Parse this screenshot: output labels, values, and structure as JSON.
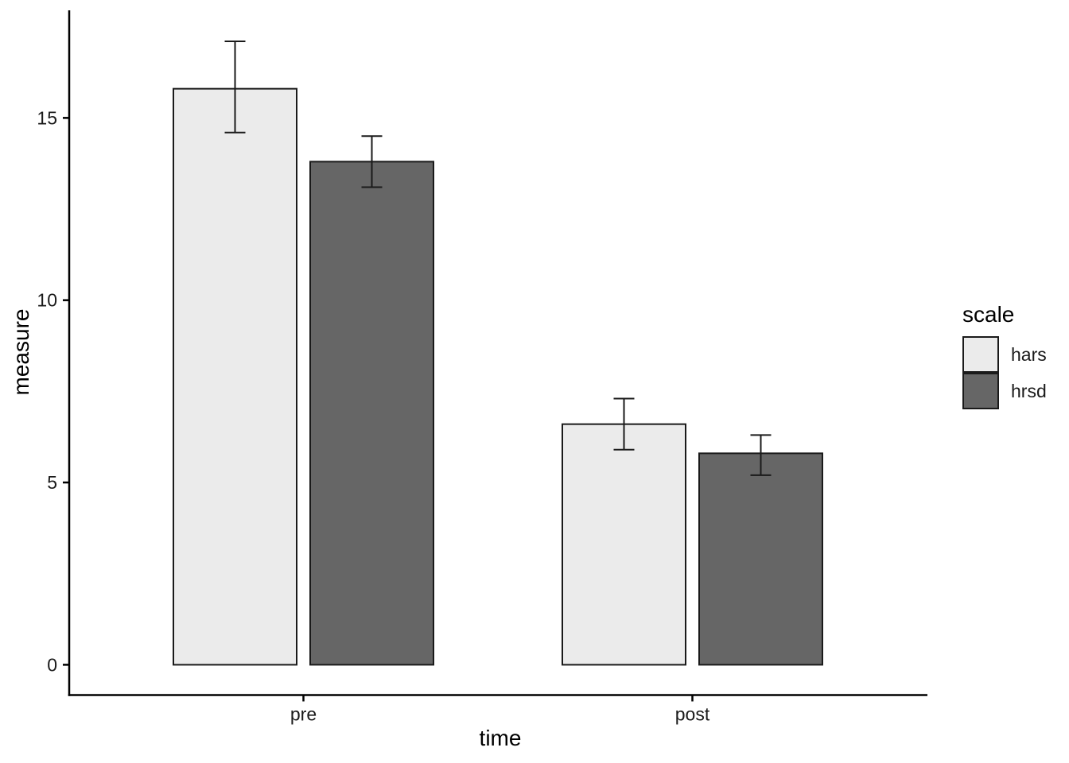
{
  "chart_data": {
    "type": "bar",
    "title": "",
    "xlabel": "time",
    "ylabel": "measure",
    "categories": [
      "pre",
      "post"
    ],
    "series": [
      {
        "name": "hars",
        "fill": "#ebebeb",
        "values": [
          15.8,
          6.6
        ],
        "error_low": [
          14.6,
          5.9
        ],
        "error_high": [
          17.1,
          7.3
        ]
      },
      {
        "name": "hrsd",
        "fill": "#666666",
        "values": [
          13.8,
          5.8
        ],
        "error_low": [
          13.1,
          5.2
        ],
        "error_high": [
          14.5,
          6.3
        ]
      }
    ],
    "yticks": [
      0,
      5,
      10,
      15
    ],
    "ylim": [
      0,
      17.9
    ],
    "grid": false,
    "bar_border_color": "#1a1a1a",
    "error_bar_color": "#1a1a1a",
    "axis_color": "#000000",
    "legend": {
      "title": "scale",
      "position": "right",
      "entries": [
        "hars",
        "hrsd"
      ]
    }
  }
}
